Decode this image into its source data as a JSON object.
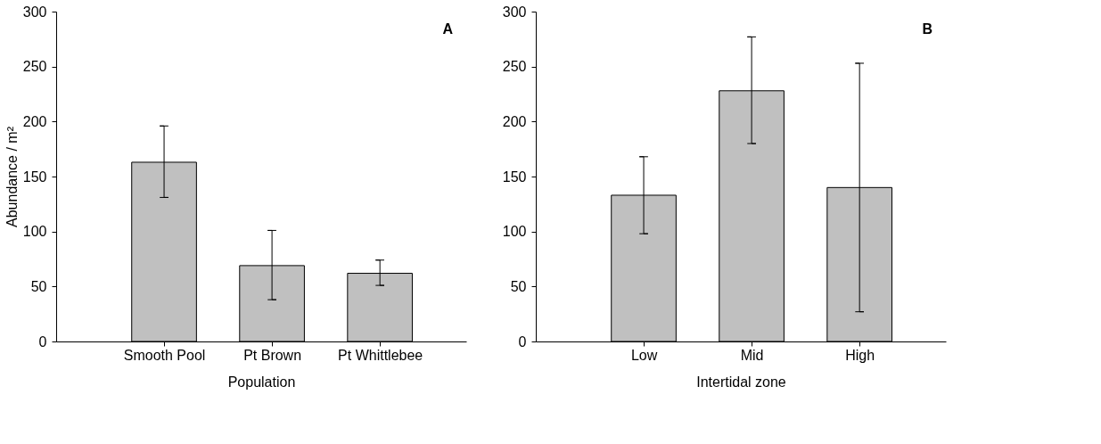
{
  "chart_data": [
    {
      "type": "bar",
      "annotations": [
        "A"
      ],
      "xlabel": "Population",
      "ylabel": "Abundance / m²",
      "categories": [
        "Smooth Pool",
        "Pt Brown",
        "Pt Whittlebee"
      ],
      "values": [
        163,
        69,
        62
      ],
      "errors": [
        [
          131,
          196
        ],
        [
          38,
          101
        ],
        [
          51,
          74
        ]
      ],
      "color": "#c0c0c0",
      "ylim": [
        0,
        300
      ],
      "yticks": [
        0,
        50,
        100,
        150,
        200,
        250,
        300
      ],
      "grid": false
    },
    {
      "type": "bar",
      "annotations": [
        "B"
      ],
      "xlabel": "Intertidal zone",
      "categories": [
        "Low",
        "Mid",
        "High"
      ],
      "values": [
        133,
        228,
        140
      ],
      "errors": [
        [
          98,
          168
        ],
        [
          180,
          277
        ],
        [
          27,
          253
        ]
      ],
      "color": "#c0c0c0",
      "ylim": [
        0,
        300
      ],
      "yticks": [
        0,
        50,
        100,
        150,
        200,
        250,
        300
      ],
      "grid": false
    }
  ]
}
